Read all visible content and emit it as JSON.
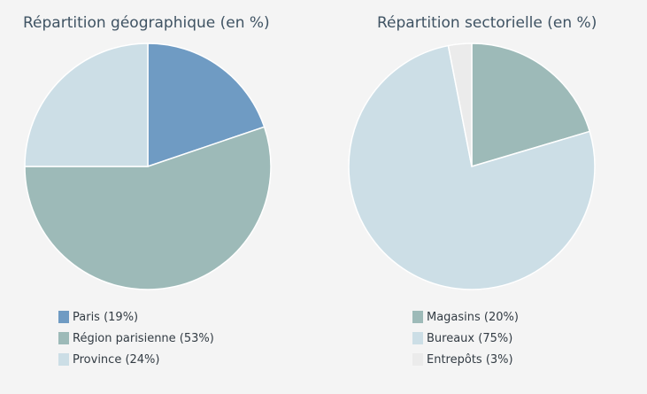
{
  "chart_data": [
    {
      "type": "pie",
      "title": "Répartition géographique (en %)",
      "slices": [
        {
          "label": "Paris (19%)",
          "value": 19,
          "color": "#6f9bc3"
        },
        {
          "label": "Région parisienne (53%)",
          "value": 53,
          "color": "#9dbab8"
        },
        {
          "label": "Province (24%)",
          "value": 24,
          "color": "#ccdee6"
        }
      ]
    },
    {
      "type": "pie",
      "title": "Répartition sectorielle (en %)",
      "slices": [
        {
          "label": "Magasins (20%)",
          "value": 20,
          "color": "#9dbab8"
        },
        {
          "label": "Bureaux (75%)",
          "value": 75,
          "color": "#ccdee6"
        },
        {
          "label": "Entrepôts (3%)",
          "value": 3,
          "color": "#ebebeb"
        }
      ]
    }
  ]
}
